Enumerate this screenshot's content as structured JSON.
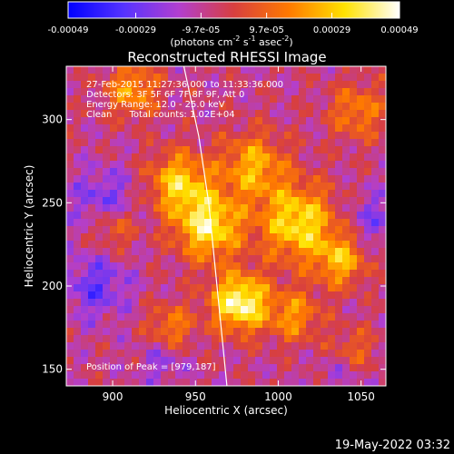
{
  "chart_data": {
    "type": "heatmap",
    "title": "Reconstructed RHESSI Image",
    "xlabel": "Heliocentric X (arcsec)",
    "ylabel": "Heliocentric Y (arcsec)",
    "xlim": [
      872,
      1065
    ],
    "ylim": [
      140,
      332
    ],
    "x_ticks": [
      900,
      950,
      1000,
      1050
    ],
    "y_ticks": [
      150,
      200,
      250,
      300
    ],
    "grid": false,
    "colorbar": {
      "orientation": "horizontal",
      "position": "top",
      "range": [
        -0.00049,
        0.00049
      ],
      "tick_values": [
        -0.00049,
        -0.00029,
        -9.7e-05,
        9.7e-05,
        0.00029,
        0.00049
      ],
      "tick_labels": [
        "-0.00049",
        "-0.00029",
        "-9.7e-05",
        "9.7e-05",
        "0.00029",
        "0.00049"
      ],
      "unit_text": "(photons cm",
      "unit_sup1": "-2",
      "unit_mid1": " s",
      "unit_sup2": "-1",
      "unit_mid2": " asec",
      "unit_sup3": "-2",
      "unit_end": ")",
      "colors": [
        "#0000ff",
        "#5533ff",
        "#b23fd0",
        "#d83f3f",
        "#ff7a00",
        "#ffe200",
        "#ffffff"
      ]
    },
    "annotations": [
      "27-Feb-2015 11:27:36.000 to 11:33:36.000",
      "Detectors: 3F 5F 6F 7F 8F 9F, Att 0",
      "Energy Range: 12.0 - 25.0 keV",
      "Clean      Total counts: 1.02E+04"
    ],
    "peak_label": "Position of Peak = [979,187]",
    "peak_position": [
      979,
      187
    ],
    "limb_curve": [
      [
        943,
        332
      ],
      [
        952,
        290
      ],
      [
        958,
        250
      ],
      [
        962,
        210
      ],
      [
        966,
        170
      ],
      [
        969,
        140
      ]
    ],
    "timestamp": "19-May-2022 03:32",
    "hot_spots": [
      {
        "x": 977,
        "y": 190,
        "amp": 1.0,
        "r": 12
      },
      {
        "x": 958,
        "y": 236,
        "amp": 0.85,
        "r": 14
      },
      {
        "x": 1012,
        "y": 238,
        "amp": 0.8,
        "r": 16
      },
      {
        "x": 940,
        "y": 262,
        "amp": 0.7,
        "r": 13
      },
      {
        "x": 1038,
        "y": 215,
        "amp": 0.6,
        "r": 11
      },
      {
        "x": 985,
        "y": 272,
        "amp": 0.6,
        "r": 14
      },
      {
        "x": 912,
        "y": 318,
        "amp": 0.55,
        "r": 11
      },
      {
        "x": 1048,
        "y": 305,
        "amp": 0.45,
        "r": 12
      },
      {
        "x": 900,
        "y": 235,
        "amp": 0.45,
        "r": 10
      },
      {
        "x": 1045,
        "y": 160,
        "amp": 0.4,
        "r": 10
      },
      {
        "x": 935,
        "y": 175,
        "amp": 0.45,
        "r": 10
      },
      {
        "x": 1010,
        "y": 182,
        "amp": 0.5,
        "r": 11
      }
    ],
    "cold_spots": [
      {
        "x": 895,
        "y": 250,
        "amp": 0.6,
        "r": 14
      },
      {
        "x": 890,
        "y": 200,
        "amp": 0.6,
        "r": 14
      },
      {
        "x": 1058,
        "y": 240,
        "amp": 0.45,
        "r": 12
      },
      {
        "x": 930,
        "y": 155,
        "amp": 0.4,
        "r": 10
      },
      {
        "x": 1040,
        "y": 150,
        "amp": 0.4,
        "r": 10
      }
    ]
  }
}
